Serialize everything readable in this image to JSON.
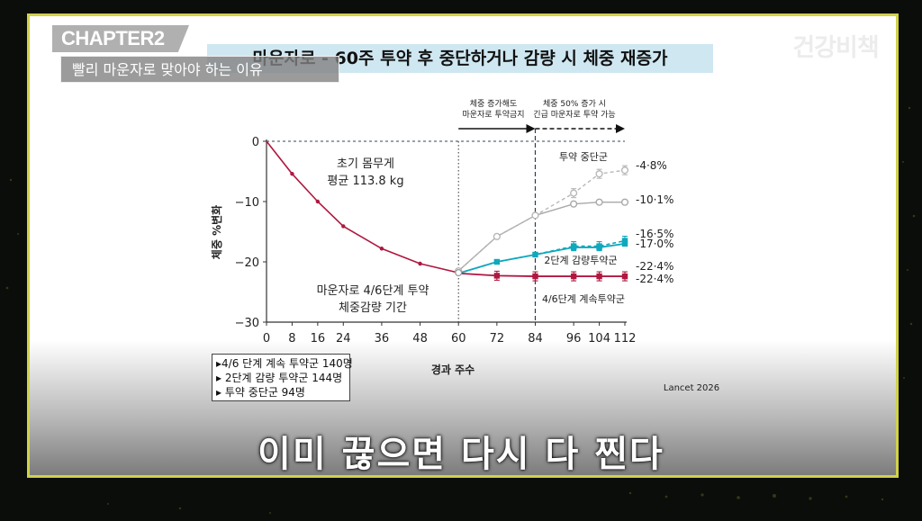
{
  "overlay": {
    "chapter": "CHAPTER2",
    "subtitle": "빨리 마운자로 맞아야 하는 이유",
    "logo": "건강비책",
    "caption": "이미 끊으면 다시 다 찐다"
  },
  "colors": {
    "continued": "#b0173f",
    "reduced": "#0fa8bd",
    "stopped_dashed": "#b8b8b8",
    "stopped_solid": "#a9a9a9",
    "title_bg": "#cfe7f1",
    "frame": "#cfd24a"
  },
  "chart_data": {
    "type": "line",
    "title": "마운자로 - 60주 투약 후 중단하거나 감량 시 체중 재증가",
    "xlabel": "경과 주수",
    "ylabel": "체중 %변화",
    "xlim": [
      0,
      112
    ],
    "ylim": [
      -30,
      0
    ],
    "x_ticks": [
      0,
      8,
      16,
      24,
      36,
      48,
      60,
      72,
      84,
      96,
      104,
      112
    ],
    "y_ticks": [
      0,
      -10,
      -20,
      -30
    ],
    "lead_in": {
      "name": "마운자로 4/6단계 투약 체중감량 기간",
      "x": [
        0,
        8,
        16,
        24,
        36,
        48,
        60
      ],
      "y": [
        0,
        -5.4,
        -10,
        -14.1,
        -17.8,
        -20.3,
        -21.8
      ]
    },
    "series": [
      {
        "name": "4/6단계 계속투약군",
        "x": [
          60,
          72,
          84,
          96,
          104,
          112
        ],
        "y": [
          -21.9,
          -22.3,
          -22.4,
          -22.4,
          -22.4,
          -22.4
        ],
        "end_label": "-22·4%"
      },
      {
        "name": "2단계 감량투약군",
        "x": [
          60,
          72,
          84,
          96,
          104,
          112
        ],
        "y": [
          -21.9,
          -20,
          -18.8,
          -17.4,
          -17.4,
          -16.5
        ],
        "end_label": "-16·5%"
      },
      {
        "name": "2단계 감량투약군 (실선)",
        "x": [
          60,
          72,
          84,
          96,
          104,
          112
        ],
        "y": [
          -21.9,
          -20,
          -18.8,
          -17.6,
          -17.6,
          -17.0
        ],
        "end_label": "-17·0%"
      },
      {
        "name": "투약 중단군",
        "x": [
          60,
          72,
          84,
          96,
          104,
          112
        ],
        "y": [
          -21.5,
          -15.8,
          -12.3,
          -8.6,
          -5.4,
          -4.8
        ],
        "end_label": "-4·8%"
      },
      {
        "name": "투약 중단군 (실선)",
        "x": [
          60,
          72,
          84,
          96,
          104,
          112
        ],
        "y": [
          -21.5,
          -15.8,
          -12.3,
          -10.4,
          -10.1,
          -10.1
        ],
        "end_label": "-10·1%"
      },
      {
        "name": "4/6단계 계속투약군 (두번째)",
        "x": [
          112
        ],
        "y": [
          -22.4
        ],
        "end_label": "-22·4%"
      }
    ],
    "annotations": {
      "baseline_1": "초기 몸무게",
      "baseline_2": "평균 113.8 kg",
      "period_1": "마운자로 4/6단계 투약",
      "period_2": "체중감량 기간",
      "arrow1_line1": "체중 증가해도",
      "arrow1_line2": "마운자로 투약금지",
      "arrow2_line1": "체중 50% 증가 시",
      "arrow2_line2": "긴급 마운자로 투약 가능",
      "group_stop": "투약 중단군",
      "group_reduce": "2단계 감량투약군",
      "group_continue": "4/6단계 계속투약군",
      "source": "Lancet 2026"
    },
    "legend": [
      "▸4/6 단계 계속 투약군 140명",
      "▸ 2단계 감량 투약군 144명",
      "▸ 투약 중단군 94명"
    ],
    "grid": false
  }
}
